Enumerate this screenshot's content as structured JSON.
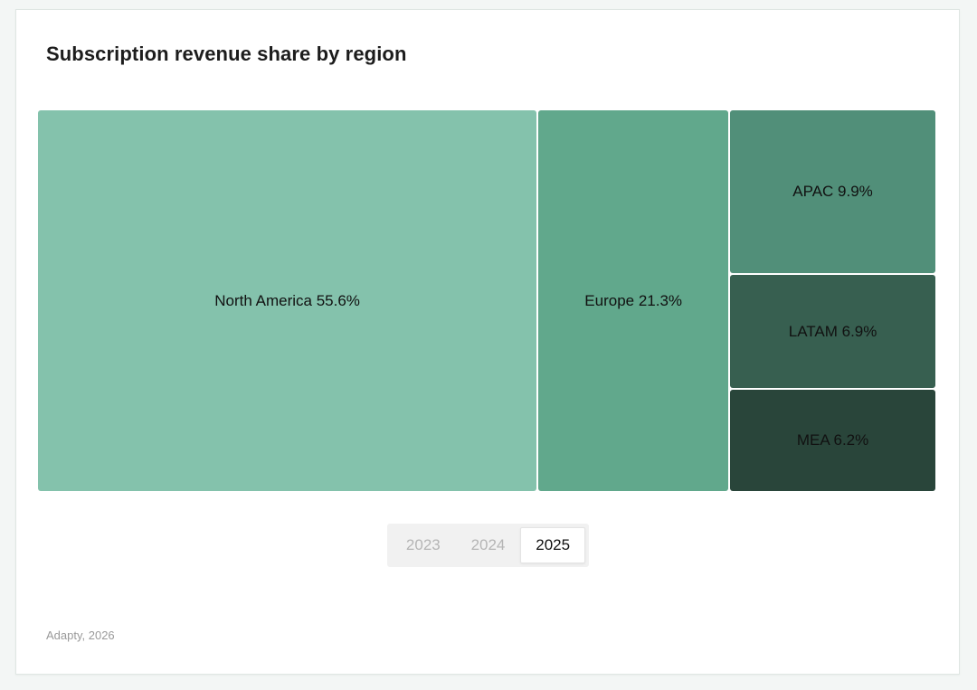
{
  "chart_data": {
    "type": "treemap",
    "title": "Subscription revenue share by region",
    "unit": "%",
    "regions": [
      {
        "name": "North America",
        "value": 55.6,
        "label": "North America 55.6%",
        "color": "#84c2ac"
      },
      {
        "name": "Europe",
        "value": 21.3,
        "label": "Europe 21.3%",
        "color": "#61a88c"
      },
      {
        "name": "APAC",
        "value": 9.9,
        "label": "APAC 9.9%",
        "color": "#518f79"
      },
      {
        "name": "LATAM",
        "value": 6.9,
        "label": "LATAM 6.9%",
        "color": "#375f50"
      },
      {
        "name": "MEA",
        "value": 6.2,
        "label": "MEA 6.2%",
        "color": "#29453a"
      }
    ]
  },
  "year_selector": {
    "years": [
      "2023",
      "2024",
      "2025"
    ],
    "selected": "2025"
  },
  "footer": {
    "source": "Adapty, 2026"
  }
}
